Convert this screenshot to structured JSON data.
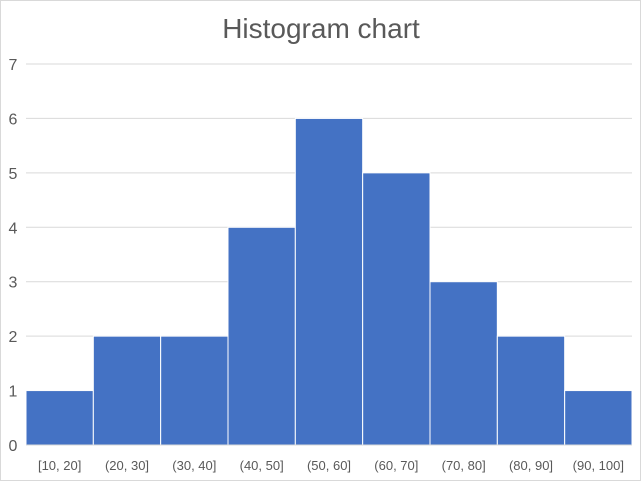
{
  "chart_data": {
    "type": "bar",
    "title": "Histogram chart",
    "xlabel": "",
    "ylabel": "",
    "categories": [
      "[10, 20]",
      "(20, 30]",
      "(30, 40]",
      "(40, 50]",
      "(50, 60]",
      "(60, 70]",
      "(70, 80]",
      "(80, 90]",
      "(90, 100]"
    ],
    "values": [
      1,
      2,
      2,
      4,
      6,
      5,
      3,
      2,
      1
    ],
    "ylim": [
      0,
      7
    ],
    "yticks": [
      0,
      1,
      2,
      3,
      4,
      5,
      6,
      7
    ],
    "grid": true,
    "legend": "none",
    "bar_color": "#4472c4",
    "gridline_color": "#d9d9d9",
    "text_color": "#595959"
  }
}
